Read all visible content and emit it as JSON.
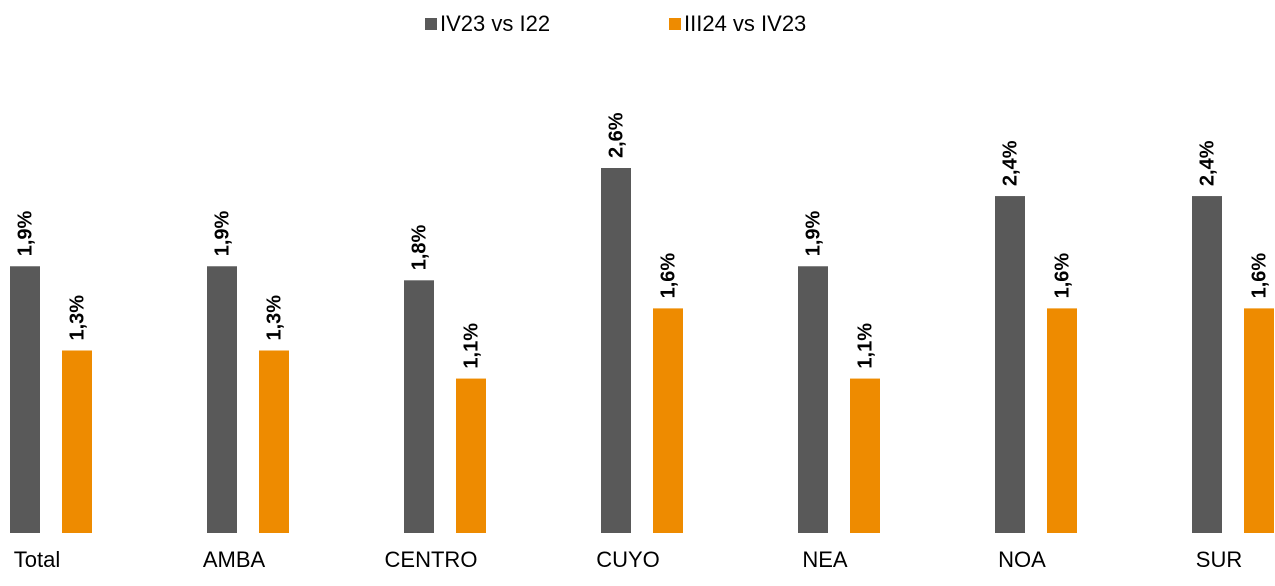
{
  "chart_data": {
    "type": "bar",
    "categories": [
      "Total",
      "AMBA",
      "CENTRO",
      "CUYO",
      "NEA",
      "NOA",
      "SUR"
    ],
    "series": [
      {
        "name": "IV23 vs I22",
        "color": "#595959",
        "values": [
          1.9,
          1.9,
          1.8,
          2.6,
          1.9,
          2.4,
          2.4
        ],
        "value_labels": [
          "1,9%",
          "1,9%",
          "1,8%",
          "2,6%",
          "1,9%",
          "2,4%",
          "2,4%"
        ]
      },
      {
        "name": "III24 vs IV23",
        "color": "#ee8b00",
        "values": [
          1.3,
          1.3,
          1.1,
          1.6,
          1.1,
          1.6,
          1.6
        ],
        "value_labels": [
          "1,3%",
          "1,3%",
          "1,1%",
          "1,6%",
          "1,1%",
          "1,6%",
          "1,6%"
        ]
      }
    ],
    "ylim": [
      0,
      2.6
    ],
    "legend": "top"
  }
}
